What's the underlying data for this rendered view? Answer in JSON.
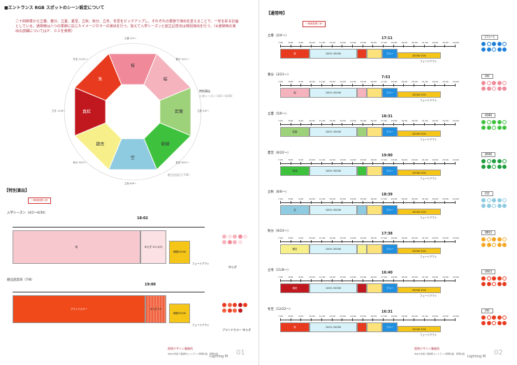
{
  "left": {
    "heading": "■エントランス RGB スポットのシーン設定について",
    "description": "二十四節季から立春、春分、立夏、夏至、立秋、秋分、立冬、冬至をピックアップし、それぞれの季節で演出を変えることで、一年を彩る計画としている。通常時は八つの季節に応じたイメージカラーの演出を行う。加えて入学シーズンと創立記念日は特別演出を行う。（※通常時の演出の詳細についてはＰ．０２を参照）",
    "wheel_labels": [
      {
        "name": "桜",
        "color": "#f08a9a"
      },
      {
        "name": "桜",
        "color": "#f5b3bd"
      },
      {
        "name": "若葉",
        "color": "#9ed27a"
      },
      {
        "name": "新緑",
        "color": "#3ec23e"
      },
      {
        "name": "空",
        "color": "#8ecae0"
      },
      {
        "name": "銀杏",
        "color": "#f7f08a"
      },
      {
        "name": "真紅",
        "color": "#c0181e"
      },
      {
        "name": "朱",
        "color": "#e83a1e"
      }
    ],
    "wheel_seasons": [
      "立春 2/4〜",
      "春分 3/21〜",
      "立夏 5/6〜",
      "夏至 6/22〜",
      "立秋 8/8〜",
      "秋分 9/23〜",
      "立冬 11/8〜",
      "冬至 12/22〜"
    ],
    "wheel_special": [
      "特別演出",
      "入学シーズン (4/1〜4/30)",
      "創立記念日 (7/8)"
    ],
    "special_heading": "【特別演出】",
    "badge_text": "一斉時刻帯１秒",
    "special_rows": [
      {
        "title": "入学シーズン（4/1〜4/30）",
        "time": "18:02",
        "main_label": "桜",
        "sub_label": "ゆらぎ 1H (4/3)",
        "end_label": "時間2000K",
        "fade": "フェードアウト",
        "legend": "ゆらぎ"
      },
      {
        "title": "創立記念日（7/8）",
        "time": "19:00",
        "main_label": "ブランドカラー",
        "sub_label": "ゆらぎ 1H",
        "end_label": "時間2000K",
        "fade": "フェードアウト",
        "legend": "ブランドカラー ゆらぎ"
      }
    ],
    "footer_org": "照明デザイン事務所",
    "footer_sub": "中央大学第１保健所エントランス照明計画　照明計画",
    "page_label": "Lighting M",
    "page_no": "01"
  },
  "right": {
    "heading": "【通常時】",
    "badge_text": "一斉時刻帯１秒",
    "ticks": [
      "7:00",
      "8:00",
      "9:00",
      "10:00",
      "11:00",
      "12:00",
      "13:00",
      "14:00",
      "15:00",
      "16:00",
      "17:00",
      "18:00",
      "19:00",
      "20:00",
      "21:00",
      "22:00",
      "23:00",
      "24:00"
    ],
    "rows": [
      {
        "title": "立春（2/4〜）",
        "time": "17:11",
        "color_label": "朱",
        "color": "#e83a1e",
        "chip": "【ブルー】",
        "dot_color": "#1f7fd8"
      },
      {
        "title": "春分（3/21〜）",
        "time": "7:53",
        "color_label": "桜",
        "color": "#f5b3bd",
        "chip": "【桜】",
        "dot_color": "#f08a9a"
      },
      {
        "title": "立夏（5/6〜）",
        "time": "18:31",
        "color_label": "若葉",
        "color": "#9ed27a",
        "chip": "【若葉】",
        "dot_color": "#3ec23e"
      },
      {
        "title": "夏至（6/22〜）",
        "time": "19:00",
        "color_label": "新緑",
        "color": "#3ec23e",
        "chip": "【新緑】",
        "dot_color": "#1e9e3e"
      },
      {
        "title": "立秋（8/8〜）",
        "time": "18:39",
        "color_label": "空",
        "color": "#8ecae0",
        "chip": "【空】",
        "dot_color": "#8ecae0"
      },
      {
        "title": "秋分（9/23〜）",
        "time": "17:38",
        "color_label": "銀杏",
        "color": "#f7f08a",
        "chip": "【銀杏】",
        "dot_color": "#f5a623"
      },
      {
        "title": "立冬（11/8〜）",
        "time": "16:40",
        "color_label": "真紅",
        "color": "#c0181e",
        "chip": "【真紅】",
        "dot_color": "#e83a1e"
      },
      {
        "title": "冬至（12/22〜）",
        "time": "16:31",
        "color_label": "朱",
        "color": "#e83a1e",
        "chip": "【朱】",
        "dot_color": "#e83a1e"
      }
    ],
    "band_100": "100% 5000K",
    "band_blue": "ブルー",
    "band_warm": "2000K 50%",
    "fade": "フェードアウト",
    "off": "OFF",
    "footer_org": "照明デザイン事務所",
    "footer_sub": "中央大学第１保健所エントランス照明計画　照明計画",
    "page_label": "Lighting M",
    "page_no": "02"
  }
}
